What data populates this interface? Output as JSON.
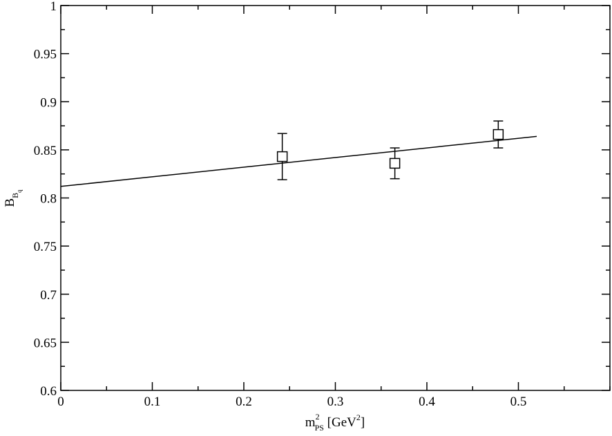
{
  "chart_data": {
    "type": "scatter",
    "title": "",
    "xlabel": {
      "main": "m",
      "sup": "2",
      "sub": "PS",
      "unit_open": " [GeV",
      "unit_sup": "2",
      "unit_close": "]"
    },
    "ylabel": {
      "main": "B",
      "sub": "B",
      "subsub": "q"
    },
    "xlim": [
      0,
      0.6
    ],
    "ylim": [
      0.6,
      1.0
    ],
    "x_ticks": [
      0,
      0.1,
      0.2,
      0.3,
      0.4,
      0.5
    ],
    "x_tick_labels": [
      "0",
      "0.1",
      "0.2",
      "0.3",
      "0.4",
      "0.5"
    ],
    "y_ticks": [
      0.6,
      0.65,
      0.7,
      0.75,
      0.8,
      0.85,
      0.9,
      0.95,
      1.0
    ],
    "y_tick_labels": [
      "0.6",
      "0.65",
      "0.7",
      "0.75",
      "0.8",
      "0.85",
      "0.9",
      "0.95",
      "1"
    ],
    "x_minor_step": 0.05,
    "y_minor_step": 0.025,
    "grid": false,
    "legend": "none",
    "series": [
      {
        "marker": "open-square",
        "points": [
          {
            "x": 0.242,
            "y": 0.843,
            "ylow": 0.819,
            "yhigh": 0.867
          },
          {
            "x": 0.365,
            "y": 0.836,
            "ylow": 0.82,
            "yhigh": 0.852
          },
          {
            "x": 0.478,
            "y": 0.866,
            "ylow": 0.852,
            "yhigh": 0.88
          }
        ]
      }
    ],
    "fit_line": {
      "x_start": 0.0,
      "y_start": 0.812,
      "x_end": 0.52,
      "y_end": 0.864
    },
    "colors": {
      "axis": "#000000",
      "marker": "#000000",
      "line": "#000000",
      "background": "#ffffff"
    }
  }
}
